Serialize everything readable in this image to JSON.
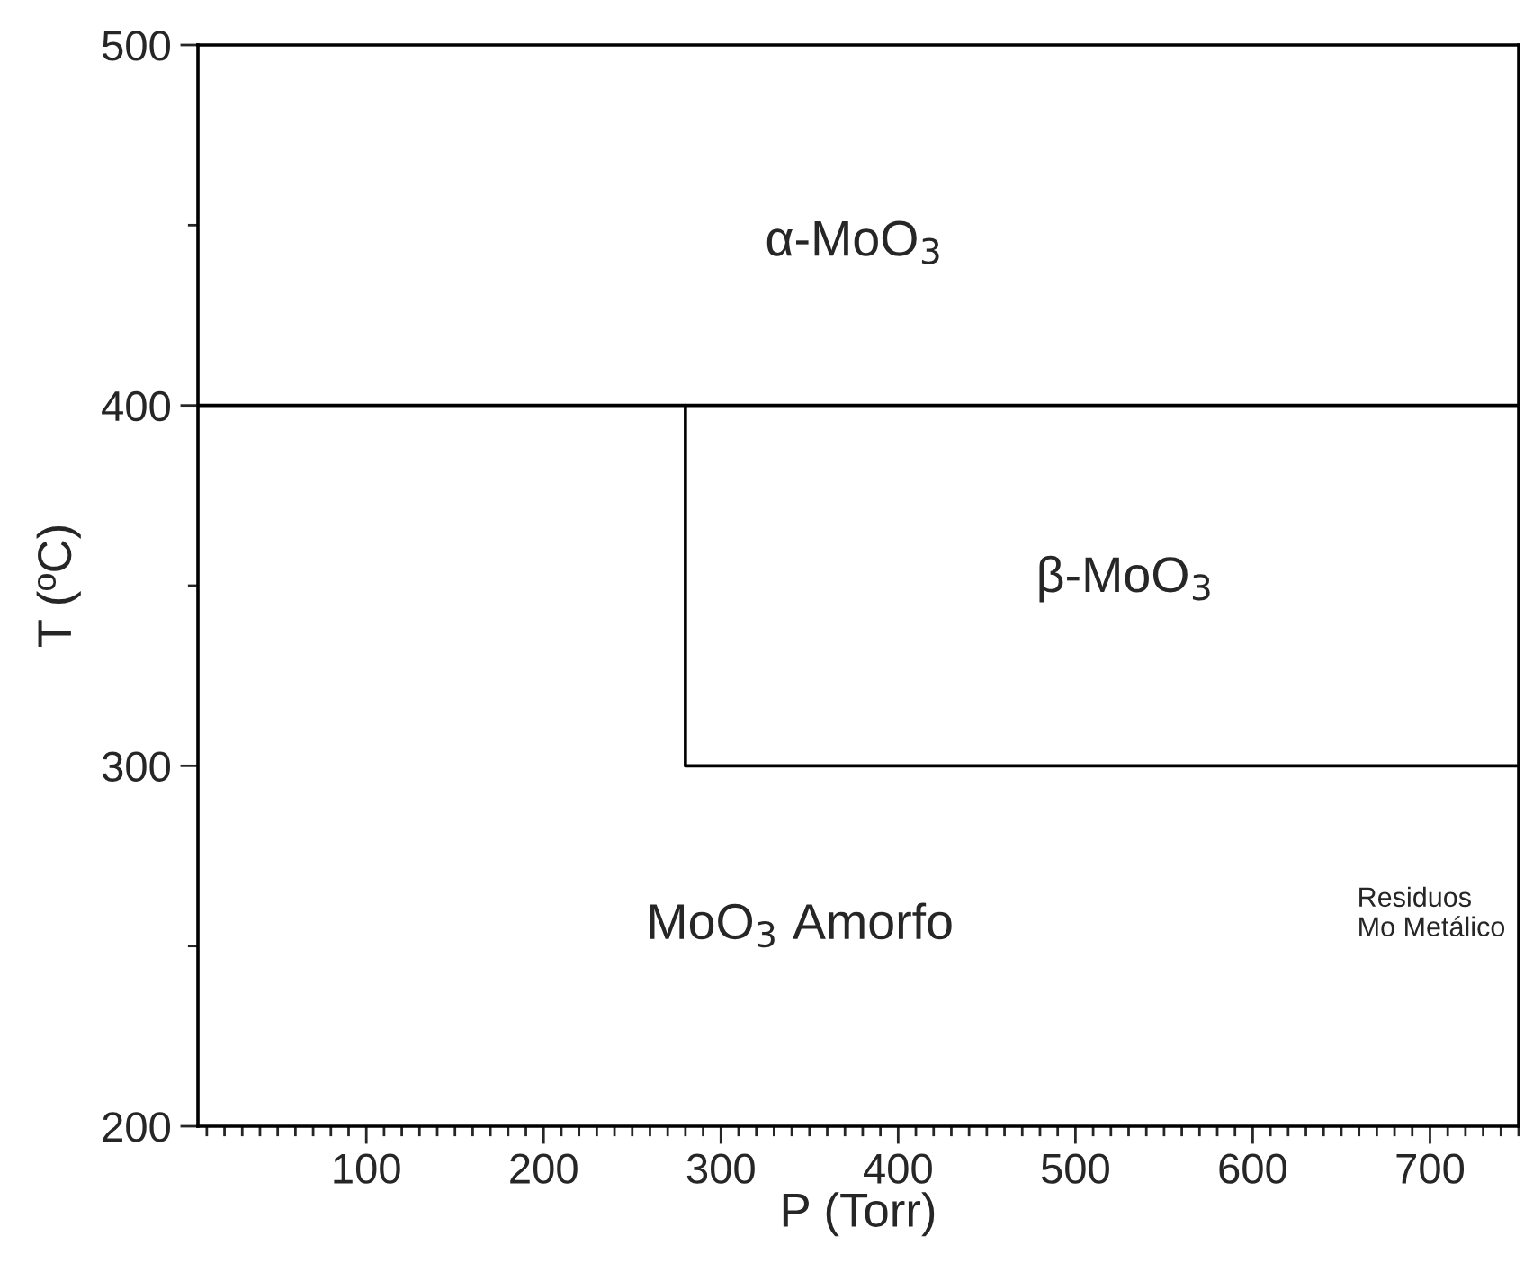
{
  "chart_data": {
    "type": "line",
    "xlabel": "P (Torr)",
    "ylabel": "T (ºC)",
    "series": [
      {
        "color": "#000000",
        "x": [
          5,
          750
        ],
        "values": [
          400,
          400
        ]
      },
      {
        "color": "#000000",
        "x": [
          280,
          280
        ],
        "values": [
          300,
          400
        ]
      },
      {
        "color": "#000000",
        "x": [
          280,
          750
        ],
        "values": [
          300,
          300
        ]
      }
    ],
    "annotations": [
      "α-MoO$_{3}$",
      "β-MoO$_{3}$",
      "MoO$_{3}$ Amorfo",
      "Residuos\nMo Metálico"
    ],
    "xlim": [
      5,
      750
    ],
    "ylim": [
      200,
      500
    ],
    "xticks": [
      {
        "value": 10,
        "label": null
      },
      {
        "value": 20,
        "label": null
      },
      {
        "value": 30,
        "label": null
      },
      {
        "value": 40,
        "label": null
      },
      {
        "value": 50,
        "label": null
      },
      {
        "value": 60,
        "label": null
      },
      {
        "value": 70,
        "label": null
      },
      {
        "value": 80,
        "label": null
      },
      {
        "value": 90,
        "label": null
      },
      100,
      {
        "value": 110,
        "label": null
      },
      {
        "value": 120,
        "label": null
      },
      {
        "value": 130,
        "label": null
      },
      {
        "value": 140,
        "label": null
      },
      {
        "value": 150,
        "label": null
      },
      {
        "value": 160,
        "label": null
      },
      {
        "value": 170,
        "label": null
      },
      {
        "value": 180,
        "label": null
      },
      {
        "value": 190,
        "label": null
      },
      200,
      {
        "value": 210,
        "label": null
      },
      {
        "value": 220,
        "label": null
      },
      {
        "value": 230,
        "label": null
      },
      {
        "value": 240,
        "label": null
      },
      {
        "value": 250,
        "label": null
      },
      {
        "value": 260,
        "label": null
      },
      {
        "value": 270,
        "label": null
      },
      {
        "value": 280,
        "label": null
      },
      {
        "value": 290,
        "label": null
      },
      300,
      {
        "value": 310,
        "label": null
      },
      {
        "value": 320,
        "label": null
      },
      {
        "value": 330,
        "label": null
      },
      {
        "value": 340,
        "label": null
      },
      {
        "value": 350,
        "label": null
      },
      {
        "value": 360,
        "label": null
      },
      {
        "value": 370,
        "label": null
      },
      {
        "value": 380,
        "label": null
      },
      {
        "value": 390,
        "label": null
      },
      400,
      {
        "value": 410,
        "label": null
      },
      {
        "value": 420,
        "label": null
      },
      {
        "value": 430,
        "label": null
      },
      {
        "value": 440,
        "label": null
      },
      {
        "value": 450,
        "label": null
      },
      {
        "value": 460,
        "label": null
      },
      {
        "value": 470,
        "label": null
      },
      {
        "value": 480,
        "label": null
      },
      {
        "value": 490,
        "label": null
      },
      500,
      {
        "value": 510,
        "label": null
      },
      {
        "value": 520,
        "label": null
      },
      {
        "value": 530,
        "label": null
      },
      {
        "value": 540,
        "label": null
      },
      {
        "value": 550,
        "label": null
      },
      {
        "value": 560,
        "label": null
      },
      {
        "value": 570,
        "label": null
      },
      {
        "value": 580,
        "label": null
      },
      {
        "value": 590,
        "label": null
      },
      600,
      {
        "value": 610,
        "label": null
      },
      {
        "value": 620,
        "label": null
      },
      {
        "value": 630,
        "label": null
      },
      {
        "value": 640,
        "label": null
      },
      {
        "value": 650,
        "label": null
      },
      {
        "value": 660,
        "label": null
      },
      {
        "value": 670,
        "label": null
      },
      {
        "value": 680,
        "label": null
      },
      {
        "value": 690,
        "label": null
      },
      700,
      {
        "value": 710,
        "label": null
      },
      {
        "value": 720,
        "label": null
      },
      {
        "value": 730,
        "label": null
      },
      {
        "value": 740,
        "label": null
      },
      {
        "value": 750,
        "label": null
      }
    ],
    "yticks": [
      200,
      {
        "value": 250,
        "label": null
      },
      300,
      {
        "value": 350,
        "label": null
      },
      400,
      {
        "value": 450,
        "label": null
      },
      500
    ],
    "grid": false,
    "legend": false
  }
}
